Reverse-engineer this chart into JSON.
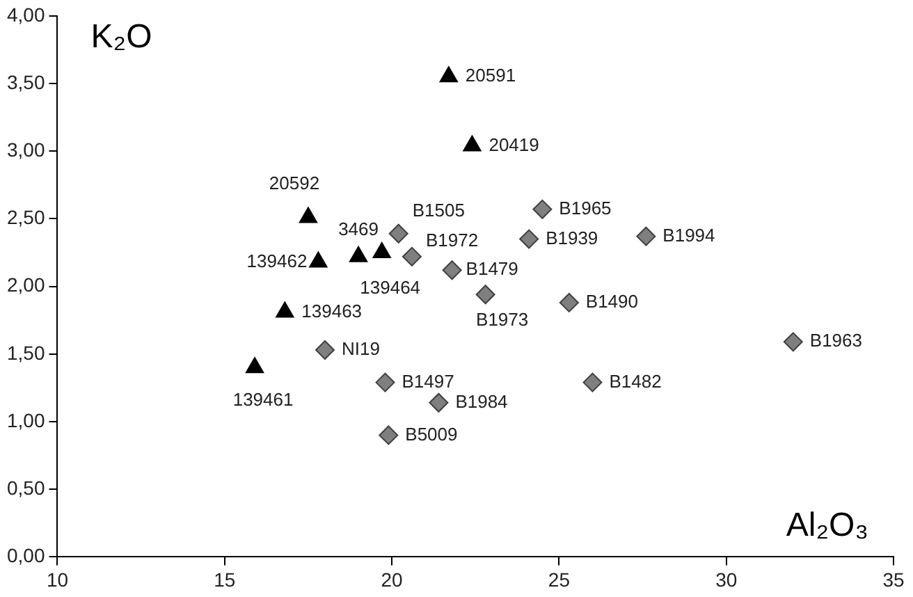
{
  "chart_data": {
    "type": "scatter",
    "xlabel": "Al₂O₃",
    "ylabel": "K₂O",
    "xlim": [
      10,
      35
    ],
    "xticks": [
      10,
      15,
      20,
      25,
      30,
      35
    ],
    "ylim": [
      0,
      4
    ],
    "yticks": [
      {
        "value": 0,
        "label": "0,00"
      },
      {
        "value": 0.5,
        "label": "0,50"
      },
      {
        "value": 1,
        "label": "1,00"
      },
      {
        "value": 1.5,
        "label": "1,50"
      },
      {
        "value": 2,
        "label": "2,00"
      },
      {
        "value": 2.5,
        "label": "2,50"
      },
      {
        "value": 3,
        "label": "3,00"
      },
      {
        "value": 3.5,
        "label": "3,50"
      },
      {
        "value": 4,
        "label": "4,00"
      }
    ],
    "grid": false,
    "legend": false,
    "series": [
      {
        "marker": "triangle",
        "color": "#000000",
        "x": [
          21.7,
          22.4,
          17.5,
          17.8,
          19.0,
          19.7,
          16.8,
          15.9
        ],
        "values": [
          3.55,
          3.04,
          2.51,
          2.18,
          2.22,
          2.25,
          1.81,
          1.4
        ]
      },
      {
        "marker": "diamond",
        "color": "#7f7f7f",
        "x": [
          20.2,
          20.6,
          21.8,
          22.8,
          24.5,
          24.1,
          27.6,
          25.3,
          32.0,
          26.0,
          18.0,
          19.8,
          21.4,
          19.9
        ],
        "values": [
          2.39,
          2.22,
          2.12,
          1.94,
          2.57,
          2.35,
          2.37,
          1.88,
          1.59,
          1.29,
          1.53,
          1.29,
          1.14,
          0.9
        ]
      }
    ],
    "annotations": [
      {
        "text": "20591",
        "x": 21.7,
        "y": 3.55
      },
      {
        "text": "20419",
        "x": 22.4,
        "y": 3.04
      },
      {
        "text": "20592",
        "x": 17.5,
        "y": 2.51
      },
      {
        "text": "139462",
        "x": 17.8,
        "y": 2.18
      },
      {
        "text": "3469",
        "x": 19.0,
        "y": 2.22
      },
      {
        "text": "139464",
        "x": 19.7,
        "y": 2.25
      },
      {
        "text": "139463",
        "x": 16.8,
        "y": 1.81
      },
      {
        "text": "139461",
        "x": 15.9,
        "y": 1.4
      },
      {
        "text": "B1505",
        "x": 20.2,
        "y": 2.39
      },
      {
        "text": "B1972",
        "x": 20.6,
        "y": 2.22
      },
      {
        "text": "B1479",
        "x": 21.8,
        "y": 2.12
      },
      {
        "text": "B1973",
        "x": 22.8,
        "y": 1.94
      },
      {
        "text": "B1965",
        "x": 24.5,
        "y": 2.57
      },
      {
        "text": "B1939",
        "x": 24.1,
        "y": 2.35
      },
      {
        "text": "B1994",
        "x": 27.6,
        "y": 2.37
      },
      {
        "text": "B1490",
        "x": 25.3,
        "y": 1.88
      },
      {
        "text": "B1963",
        "x": 32.0,
        "y": 1.59
      },
      {
        "text": "B1482",
        "x": 26.0,
        "y": 1.29
      },
      {
        "text": "NI19",
        "x": 18.0,
        "y": 1.53
      },
      {
        "text": "B1497",
        "x": 19.8,
        "y": 1.29
      },
      {
        "text": "B1984",
        "x": 21.4,
        "y": 1.14
      },
      {
        "text": "B5009",
        "x": 19.9,
        "y": 0.9
      }
    ]
  }
}
